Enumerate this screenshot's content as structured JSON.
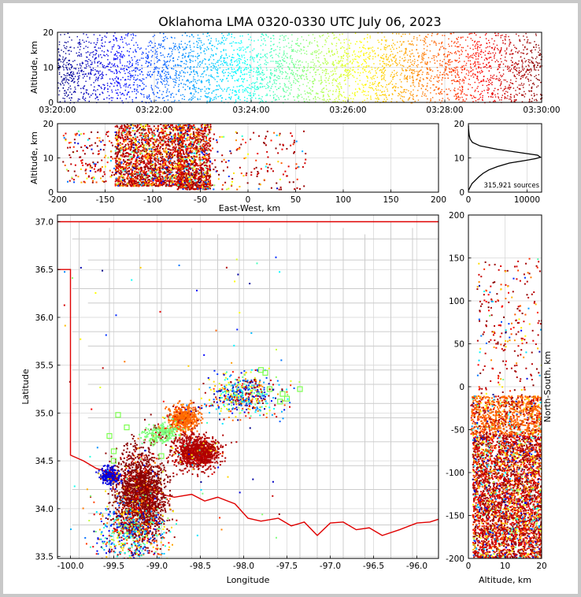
{
  "title": "Oklahoma LMA 0320-0330 UTC July 06, 2023",
  "chart_data": [
    {
      "type": "scatter",
      "panel": "altitude-time",
      "ylabel": "Altitude, km",
      "xlabel": "",
      "ylim": [
        0,
        20
      ],
      "yticks": [
        "0",
        "10",
        "20"
      ],
      "xticks": [
        "03:20:00",
        "03:22:00",
        "03:24:00",
        "03:26:00",
        "03:28:00",
        "03:30:00"
      ],
      "grid": true,
      "density_profile": [
        [
          1,
          0.5
        ],
        [
          2,
          0.62
        ],
        [
          4,
          0.62
        ],
        [
          6,
          0.58
        ],
        [
          8,
          0.78
        ],
        [
          10,
          0.9
        ],
        [
          12,
          0.85
        ],
        [
          14,
          0.7
        ],
        [
          16,
          0.6
        ],
        [
          18,
          0.5
        ],
        [
          20,
          0.3
        ]
      ],
      "colormap": "jet (time)"
    },
    {
      "type": "scatter",
      "panel": "altitude-eastwest",
      "xlabel": "East-West, km",
      "ylabel": "Altitude, km",
      "xlim": [
        -200,
        200
      ],
      "ylim": [
        0,
        20
      ],
      "xticks": [
        "-200",
        "-150",
        "-100",
        "-50",
        "0",
        "50",
        "100",
        "150",
        "200"
      ],
      "yticks": [
        "0",
        "10",
        "20"
      ],
      "grid": true,
      "clusters": [
        {
          "x_range": [
            -140,
            -70
          ],
          "alt_range": [
            2,
            20
          ],
          "weight": 0.55
        },
        {
          "x_range": [
            -75,
            -40
          ],
          "alt_range": [
            1,
            20
          ],
          "weight": 0.35
        },
        {
          "x_range": [
            -195,
            -140
          ],
          "alt_range": [
            3,
            18
          ],
          "weight": 0.05
        },
        {
          "x_range": [
            -40,
            60
          ],
          "alt_range": [
            1,
            18
          ],
          "weight": 0.05
        }
      ]
    },
    {
      "type": "line",
      "panel": "altitude-histogram",
      "annotation": "315,921 sources",
      "xlim": [
        0,
        12500
      ],
      "ylim": [
        0,
        20
      ],
      "xticks": [
        "0",
        "10000"
      ],
      "yticks": [
        "0",
        "10",
        "20"
      ],
      "grid": true,
      "x": [
        0,
        300,
        600,
        1200,
        1800,
        2500,
        3500,
        5000,
        7000,
        9500,
        11500,
        12300,
        11800,
        9000,
        5000,
        2000,
        700,
        300,
        150,
        80,
        30,
        0
      ],
      "y": [
        0.5,
        1.5,
        2.5,
        3.5,
        4.5,
        5.5,
        6.5,
        7.5,
        8.5,
        9.2,
        9.8,
        10.2,
        10.8,
        11.5,
        12.5,
        13.5,
        14.5,
        15.5,
        16.5,
        17.5,
        18.5,
        19.5
      ]
    },
    {
      "type": "scatter",
      "panel": "plan-view-map",
      "xlabel": "Longitude",
      "ylabel": "Latitude",
      "xlim": [
        -100.15,
        -95.75
      ],
      "ylim": [
        33.48,
        37.07
      ],
      "xticks": [
        "-100.0",
        "-99.5",
        "-99.0",
        "-98.5",
        "-98.0",
        "-97.5",
        "-97.0",
        "-96.5",
        "-96.0"
      ],
      "yticks": [
        "33.5",
        "34.0",
        "34.5",
        "35.0",
        "35.5",
        "36.0",
        "36.5",
        "37.0"
      ],
      "grid": true,
      "clusters": [
        {
          "center": [
            -99.2,
            34.15
          ],
          "spread": [
            0.25,
            0.4
          ],
          "color": "#8b0000",
          "weight": 0.4
        },
        {
          "center": [
            -98.55,
            34.6
          ],
          "spread": [
            0.22,
            0.15
          ],
          "color": "#b00000",
          "weight": 0.2
        },
        {
          "center": [
            -98.7,
            34.95
          ],
          "spread": [
            0.15,
            0.12
          ],
          "color": "#ff6a00",
          "weight": 0.1
        },
        {
          "center": [
            -98.95,
            34.8
          ],
          "spread": [
            0.18,
            0.08
          ],
          "color": "#7cff79",
          "weight": 0.05
        },
        {
          "center": [
            -99.55,
            34.35
          ],
          "spread": [
            0.1,
            0.08
          ],
          "color": "#0000e0",
          "weight": 0.05
        },
        {
          "center": [
            -98.0,
            35.2
          ],
          "spread": [
            0.35,
            0.2
          ],
          "color": "mixed",
          "weight": 0.1
        },
        {
          "center": [
            -99.3,
            33.75
          ],
          "spread": [
            0.35,
            0.3
          ],
          "color": "mixed",
          "weight": 0.1
        }
      ],
      "stations": [
        [
          -97.8,
          35.45
        ],
        [
          -97.75,
          35.42
        ],
        [
          -97.7,
          35.25
        ],
        [
          -97.55,
          35.2
        ],
        [
          -97.5,
          35.15
        ],
        [
          -97.58,
          35.12
        ],
        [
          -97.35,
          35.25
        ],
        [
          -99.45,
          34.98
        ],
        [
          -99.55,
          34.76
        ],
        [
          -99.5,
          34.5
        ],
        [
          -99.35,
          34.85
        ],
        [
          -99.05,
          34.7
        ],
        [
          -98.95,
          34.55
        ],
        [
          -99.5,
          34.6
        ]
      ]
    },
    {
      "type": "scatter",
      "panel": "altitude-northsouth",
      "xlabel": "Altitude, km",
      "ylabel": "North-South, km",
      "xlim": [
        0,
        20
      ],
      "ylim": [
        -200,
        200
      ],
      "xticks": [
        "0",
        "10",
        "20"
      ],
      "yticks": [
        "-200",
        "-150",
        "-100",
        "-50",
        "0",
        "50",
        "100",
        "150",
        "200"
      ],
      "grid": true,
      "clusters": [
        {
          "ns_range": [
            -200,
            -55
          ],
          "alt_range": [
            1,
            20
          ],
          "weight": 0.75
        },
        {
          "ns_range": [
            -55,
            -10
          ],
          "alt_range": [
            0.5,
            20
          ],
          "weight": 0.2
        },
        {
          "ns_range": [
            -10,
            150
          ],
          "alt_range": [
            2,
            20
          ],
          "weight": 0.05
        }
      ]
    }
  ]
}
